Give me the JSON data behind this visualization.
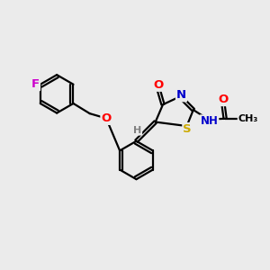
{
  "bg_color": "#ebebeb",
  "atom_colors": {
    "C": "#000000",
    "H": "#808080",
    "N": "#0000cc",
    "O": "#ff0000",
    "S": "#ccaa00",
    "F": "#cc00cc"
  },
  "bond_color": "#000000",
  "bond_width": 1.6,
  "font_size": 9.5,
  "fig_size": [
    3.0,
    3.0
  ],
  "dpi": 100
}
